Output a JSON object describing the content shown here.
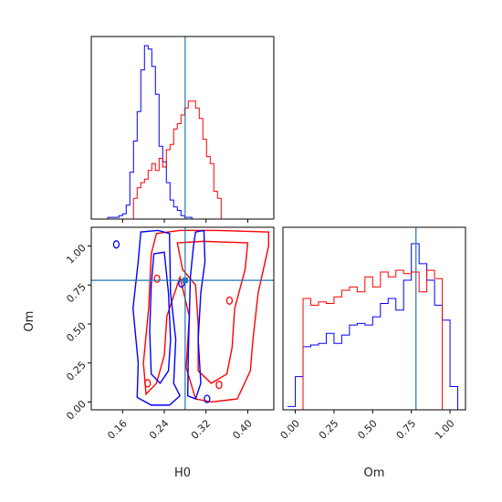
{
  "chart_data": [
    {
      "type": "histogram",
      "panel": "H0 marginal",
      "x_range": [
        0.1,
        0.45
      ],
      "truth": 0.28,
      "bins_x": [
        0.125,
        0.132,
        0.139,
        0.146,
        0.153,
        0.16,
        0.167,
        0.174,
        0.181,
        0.188,
        0.195,
        0.202,
        0.209,
        0.216,
        0.223,
        0.23,
        0.237,
        0.244,
        0.251,
        0.258,
        0.265,
        0.272,
        0.279,
        0.286,
        0.293,
        0.3,
        0.307,
        0.314,
        0.321,
        0.328,
        0.335,
        0.342,
        0.349,
        0.356,
        0.363,
        0.37,
        0.377,
        0.384,
        0.391,
        0.398,
        0.405,
        0.412
      ],
      "series": [
        {
          "color": "#0000ff",
          "values": [
            0,
            0.01,
            0.01,
            0.01,
            0.02,
            0.03,
            0.08,
            0.27,
            0.45,
            0.62,
            0.86,
            1.0,
            0.98,
            0.88,
            0.72,
            0.42,
            0.33,
            0.21,
            0.11,
            0.07,
            0.05,
            0.02,
            0.01,
            0.01,
            0,
            0,
            0,
            0,
            0,
            0,
            0,
            0,
            0,
            0,
            0,
            0,
            0,
            0,
            0,
            0,
            0,
            0
          ]
        },
        {
          "color": "#ff0000",
          "values": [
            0,
            0,
            0,
            0,
            0,
            0,
            0,
            0,
            0.12,
            0.18,
            0.21,
            0.23,
            0.28,
            0.32,
            0.28,
            0.35,
            0.3,
            0.4,
            0.43,
            0.52,
            0.55,
            0.6,
            0.64,
            0.68,
            0.68,
            0.64,
            0.58,
            0.46,
            0.36,
            0.32,
            0.16,
            0.12,
            0,
            0,
            0,
            0,
            0,
            0,
            0,
            0,
            0,
            0
          ]
        }
      ]
    },
    {
      "type": "contour",
      "panel": "Om vs H0",
      "xlabel": "H0",
      "ylabel": "Om",
      "x_ticks": [
        "0.16",
        "0.24",
        "0.32",
        "0.40"
      ],
      "y_ticks": [
        "0.00",
        "0.25",
        "0.50",
        "0.75",
        "1.00"
      ],
      "xlim": [
        0.1,
        0.45
      ],
      "ylim": [
        -0.05,
        1.12
      ],
      "truth": {
        "H0": 0.28,
        "Om": 0.78
      },
      "series": [
        {
          "color": "#0000ff",
          "levels": 2
        },
        {
          "color": "#ff0000",
          "levels": 2
        }
      ]
    },
    {
      "type": "histogram",
      "panel": "Om marginal",
      "xlabel": "Om",
      "x_ticks": [
        "0.00",
        "0.25",
        "0.50",
        "0.75",
        "1.00"
      ],
      "x_range": [
        -0.08,
        1.1
      ],
      "truth": 0.78,
      "bins_x": [
        -0.05,
        0.0,
        0.05,
        0.1,
        0.15,
        0.2,
        0.25,
        0.3,
        0.35,
        0.4,
        0.45,
        0.5,
        0.55,
        0.6,
        0.65,
        0.7,
        0.75,
        0.8,
        0.85,
        0.9,
        0.95,
        1.0,
        1.05
      ],
      "series": [
        {
          "color": "#0000ff",
          "values": [
            0.02,
            0.2,
            0.38,
            0.39,
            0.4,
            0.46,
            0.4,
            0.45,
            0.51,
            0.52,
            0.51,
            0.56,
            0.64,
            0.67,
            0.6,
            0.78,
            1.0,
            0.88,
            0.78,
            0.63,
            0.54,
            0.14,
            0.0
          ]
        },
        {
          "color": "#ff0000",
          "values": [
            0,
            0.0,
            0.67,
            0.63,
            0.65,
            0.64,
            0.68,
            0.72,
            0.74,
            0.71,
            0.8,
            0.74,
            0.83,
            0.8,
            0.84,
            0.82,
            0.83,
            0.71,
            0.84,
            0.79,
            0.0,
            0.0,
            0.0
          ]
        }
      ]
    }
  ]
}
